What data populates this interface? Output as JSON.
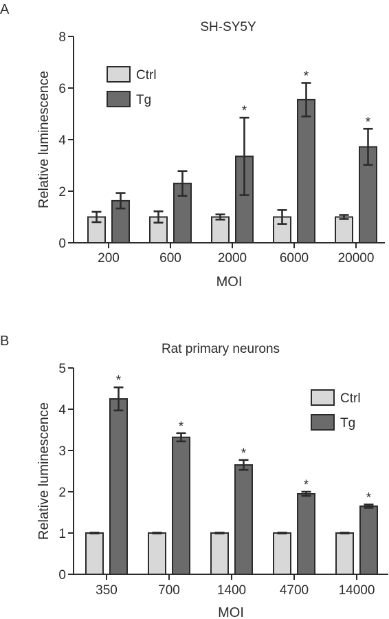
{
  "chart_data": [
    {
      "type": "bar",
      "panel": "A",
      "title": "SH-SY5Y",
      "xlabel": "MOI",
      "ylabel": "Relative luminescence",
      "ylim": [
        0,
        8
      ],
      "yticks": [
        "0",
        "2",
        "4",
        "6",
        "8"
      ],
      "categories": [
        "200",
        "600",
        "2000",
        "6000",
        "20000"
      ],
      "legend_position": "top-left",
      "series": [
        {
          "name": "Ctrl",
          "color": "#d8d8d8",
          "values": [
            1.0,
            1.0,
            1.0,
            1.0,
            1.0
          ],
          "errors": [
            0.2,
            0.22,
            0.1,
            0.27,
            0.08
          ]
        },
        {
          "name": "Tg",
          "color": "#6b6b6b",
          "values": [
            1.63,
            2.3,
            3.35,
            5.55,
            3.72
          ],
          "errors": [
            0.3,
            0.48,
            1.5,
            0.65,
            0.7
          ]
        }
      ],
      "significance": [
        "",
        "",
        "*",
        "*",
        "*"
      ]
    },
    {
      "type": "bar",
      "panel": "B",
      "title": "Rat primary neurons",
      "xlabel": "MOI",
      "ylabel": "Relative luminescence",
      "ylim": [
        0,
        5
      ],
      "yticks": [
        "0",
        "1",
        "2",
        "3",
        "4",
        "5"
      ],
      "categories": [
        "350",
        "700",
        "1400",
        "4700",
        "14000"
      ],
      "legend_position": "top-right",
      "series": [
        {
          "name": "Ctrl",
          "color": "#d8d8d8",
          "values": [
            1.0,
            1.0,
            1.0,
            1.0,
            1.0
          ],
          "errors": [
            0.01,
            0.01,
            0.01,
            0.01,
            0.01
          ]
        },
        {
          "name": "Tg",
          "color": "#6b6b6b",
          "values": [
            4.25,
            3.32,
            2.65,
            1.95,
            1.65
          ],
          "errors": [
            0.28,
            0.1,
            0.12,
            0.05,
            0.04
          ]
        }
      ],
      "significance": [
        "*",
        "*",
        "*",
        "*",
        "*"
      ]
    }
  ]
}
